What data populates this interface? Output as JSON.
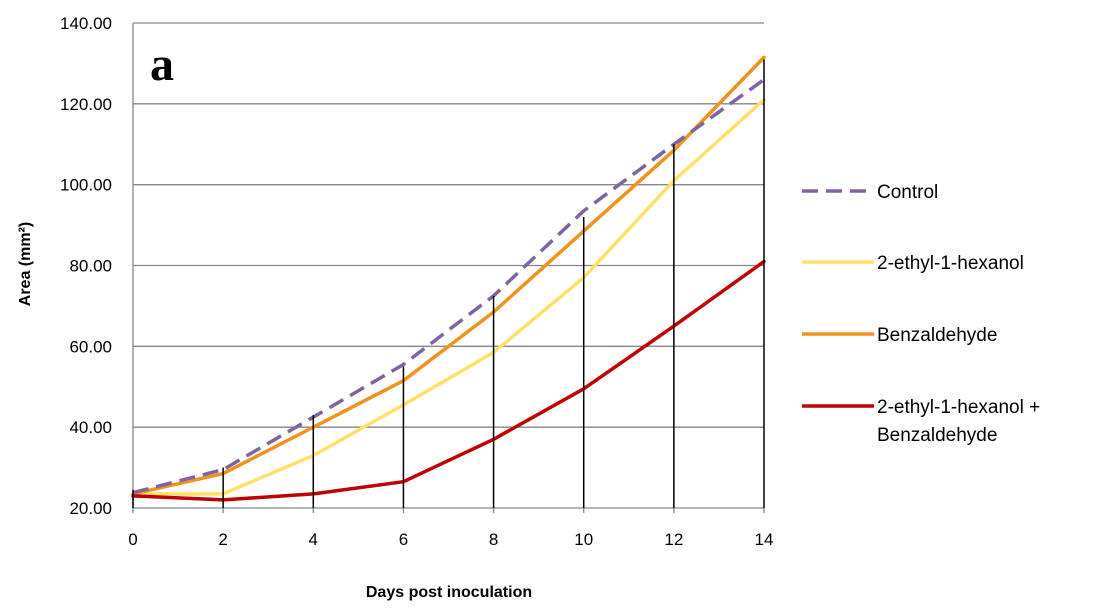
{
  "chart_data": {
    "type": "line",
    "panel_label": "a",
    "xlabel": "Days post inoculation",
    "ylabel": "Area (mm²)",
    "x": [
      0,
      2,
      4,
      6,
      8,
      10,
      12,
      14
    ],
    "xlim": [
      0,
      14
    ],
    "xticks": [
      "0",
      "2",
      "4",
      "6",
      "8",
      "10",
      "12",
      "14"
    ],
    "ylim": [
      20,
      140
    ],
    "yticks": [
      "20.00",
      "40.00",
      "60.00",
      "80.00",
      "100.00",
      "120.00",
      "140.00"
    ],
    "grid": "horizontal",
    "legend_position": "right",
    "series": [
      {
        "name": "Control",
        "color": "#8064a2",
        "dash": "dashed",
        "values": [
          23.8,
          29.5,
          42.5,
          55.5,
          72.5,
          93.5,
          110.0,
          126.0
        ]
      },
      {
        "name": "2-ethyl-1-hexanol",
        "color": "#ffe06b",
        "dash": "solid",
        "values": [
          23.5,
          23.5,
          33.0,
          45.5,
          58.5,
          77.0,
          101.0,
          121.0
        ]
      },
      {
        "name": "Benzaldehyde",
        "color": "#f0921e",
        "dash": "solid",
        "values": [
          23.5,
          28.5,
          40.0,
          51.5,
          68.5,
          88.5,
          108.5,
          131.5
        ]
      },
      {
        "name": "2-ethyl-1-hexanol + Benzaldehyde",
        "legend_lines": [
          "2-ethyl-1-hexanol +",
          "Benzaldehyde"
        ],
        "color": "#c00000",
        "dash": "solid",
        "values": [
          23.0,
          22.0,
          23.5,
          26.5,
          37.0,
          49.5,
          65.0,
          81.0
        ]
      }
    ],
    "error_bar_tops": [
      24.5,
      30.0,
      43.0,
      55.0,
      72.5,
      92.0,
      110.0,
      131.0
    ]
  }
}
